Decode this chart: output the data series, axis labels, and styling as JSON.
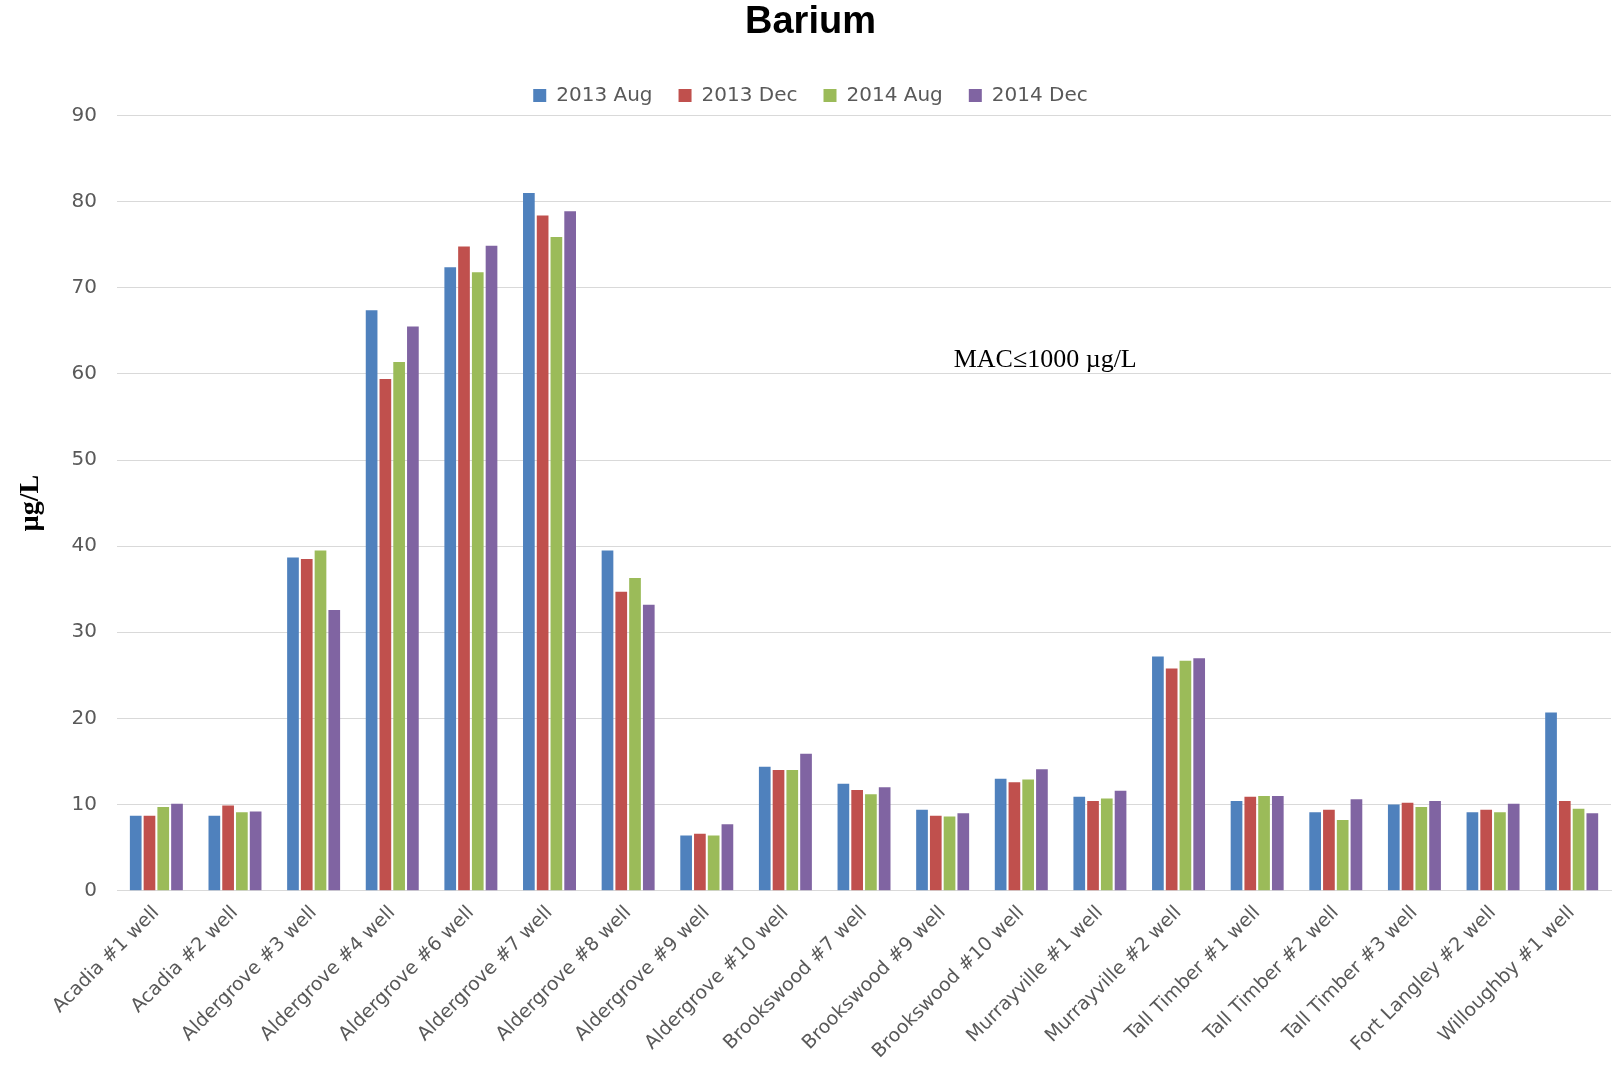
{
  "chart_data": {
    "type": "bar",
    "title": "Barium",
    "ylabel": "µg/L",
    "categories": [
      "Acadia #1 well",
      "Acadia #2 well",
      "Aldergrove #3 well",
      "Aldergrove #4 well",
      "Aldergrove #6 well",
      "Aldergrove #7 well",
      "Aldergrove #8 well",
      "Aldergrove #9 well",
      "Aldergrove #10 well",
      "Brookswood #7 well",
      "Brookswood #9 well",
      "Brookswood #10 well",
      "Murrayville #1 well",
      "Murrayville #2 well",
      "Tall Timber #1 well",
      "Tall Timber #2 well",
      "Tall Timber #3 well",
      "Fort Langley #2 well",
      "Willoughby #1 well"
    ],
    "series": [
      {
        "name": "2013 Aug",
        "color": "#4f81bd",
        "values": [
          8.7,
          8.7,
          38.7,
          67.4,
          72.4,
          81.0,
          39.5,
          6.4,
          14.4,
          12.4,
          9.4,
          13.0,
          10.9,
          27.2,
          10.4,
          9.1,
          10.0,
          9.1,
          20.7
        ]
      },
      {
        "name": "2013 Dec",
        "color": "#c0504d",
        "values": [
          8.7,
          9.9,
          38.5,
          59.4,
          74.8,
          78.4,
          34.7,
          6.6,
          14.0,
          11.7,
          8.7,
          12.6,
          10.4,
          25.8,
          10.9,
          9.4,
          10.2,
          9.4,
          10.4
        ]
      },
      {
        "name": "2014 Aug",
        "color": "#9bbb59",
        "values": [
          9.7,
          9.1,
          39.5,
          61.4,
          71.8,
          75.9,
          36.3,
          6.4,
          14.0,
          11.2,
          8.6,
          12.9,
          10.7,
          26.7,
          11.0,
          8.2,
          9.7,
          9.1,
          9.5
        ]
      },
      {
        "name": "2014 Dec",
        "color": "#8064a2",
        "values": [
          10.1,
          9.2,
          32.6,
          65.5,
          74.9,
          78.9,
          33.2,
          7.7,
          15.9,
          12.0,
          9.0,
          14.1,
          11.6,
          27.0,
          11.0,
          10.6,
          10.4,
          10.1,
          9.0
        ]
      }
    ],
    "ylim": [
      0,
      90
    ],
    "yticks": [
      0,
      10,
      20,
      30,
      40,
      50,
      60,
      70,
      80,
      90
    ],
    "grid": "y",
    "legend": "top",
    "annotations": [
      "MAC≤1000 µg/L"
    ]
  }
}
